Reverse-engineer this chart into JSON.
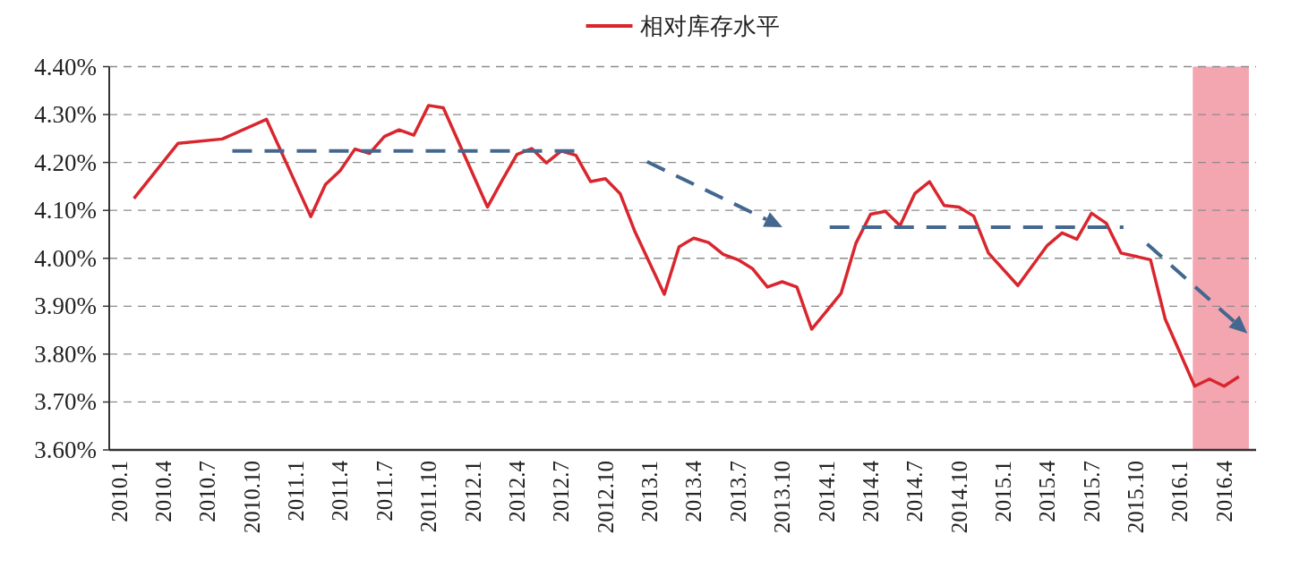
{
  "chart_data": {
    "type": "line",
    "xlim": [
      "2009-12-11",
      "2016-06-06"
    ],
    "xticks": [
      {
        "value": "2010-01",
        "label": "2010.1"
      },
      {
        "value": "2010-04",
        "label": "2010.4"
      },
      {
        "value": "2010-07",
        "label": "2010.7"
      },
      {
        "value": "2010-10",
        "label": "2010.10"
      },
      {
        "value": "2011-01",
        "label": "2011.1"
      },
      {
        "value": "2011-04",
        "label": "2011.4"
      },
      {
        "value": "2011-07",
        "label": "2011.7"
      },
      {
        "value": "2011-10",
        "label": "2011.10"
      },
      {
        "value": "2012-01",
        "label": "2012.1"
      },
      {
        "value": "2012-04",
        "label": "2012.4"
      },
      {
        "value": "2012-07",
        "label": "2012.7"
      },
      {
        "value": "2012-10",
        "label": "2012.10"
      },
      {
        "value": "2013-01",
        "label": "2013.1"
      },
      {
        "value": "2013-04",
        "label": "2013.4"
      },
      {
        "value": "2013-07",
        "label": "2013.7"
      },
      {
        "value": "2013-10",
        "label": "2013.10"
      },
      {
        "value": "2014-01",
        "label": "2014.1"
      },
      {
        "value": "2014-04",
        "label": "2014.4"
      },
      {
        "value": "2014-07",
        "label": "2014.7"
      },
      {
        "value": "2014-10",
        "label": "2014.10"
      },
      {
        "value": "2015-01",
        "label": "2015.1"
      },
      {
        "value": "2015-04",
        "label": "2015.4"
      },
      {
        "value": "2015-07",
        "label": "2015.7"
      },
      {
        "value": "2015-10",
        "label": "2015.10"
      },
      {
        "value": "2016-01",
        "label": "2016.1"
      },
      {
        "value": "2016-04",
        "label": "2016.4"
      }
    ],
    "ylim": [
      3.6,
      4.4
    ],
    "yticks": [
      {
        "value": 3.6,
        "label": "3.60%"
      },
      {
        "value": 3.7,
        "label": "3.70%"
      },
      {
        "value": 3.8,
        "label": "3.80%"
      },
      {
        "value": 3.9,
        "label": "3.90%"
      },
      {
        "value": 4.0,
        "label": "4.00%"
      },
      {
        "value": 4.1,
        "label": "4.10%"
      },
      {
        "value": 4.2,
        "label": "4.20%"
      },
      {
        "value": 4.3,
        "label": "4.30%"
      },
      {
        "value": 4.4,
        "label": "4.40%"
      }
    ],
    "grid": "y",
    "legend": "top",
    "bands": [
      {
        "axis": "x",
        "from": "2016-01-28",
        "to": "2016-05-22",
        "color": "#f4a6b0"
      }
    ],
    "series": [
      {
        "name": "相对库存水平",
        "color": "#d9262e",
        "line_style": "solid",
        "x": [
          "2010-02",
          "2010-05",
          "2010-08",
          "2010-11",
          "2011-02",
          "2011-03",
          "2011-04",
          "2011-05",
          "2011-06",
          "2011-07",
          "2011-08",
          "2011-09",
          "2011-10",
          "2011-11",
          "2012-02",
          "2012-03",
          "2012-04",
          "2012-05",
          "2012-06",
          "2012-07",
          "2012-08",
          "2012-09",
          "2012-10",
          "2012-11",
          "2012-12",
          "2013-02",
          "2013-03",
          "2013-04",
          "2013-05",
          "2013-06",
          "2013-07",
          "2013-08",
          "2013-09",
          "2013-10",
          "2013-11",
          "2013-12",
          "2014-01",
          "2014-02",
          "2014-03",
          "2014-04",
          "2014-05",
          "2014-06",
          "2014-07",
          "2014-08",
          "2014-09",
          "2014-10",
          "2014-11",
          "2014-12",
          "2015-02",
          "2015-04",
          "2015-05",
          "2015-06",
          "2015-07",
          "2015-08",
          "2015-09",
          "2015-11",
          "2015-12",
          "2016-02",
          "2016-03",
          "2016-04",
          "2016-05"
        ],
        "values": [
          4.125,
          4.24,
          4.249,
          4.29,
          4.087,
          4.154,
          4.183,
          4.228,
          4.219,
          4.254,
          4.268,
          4.257,
          4.319,
          4.314,
          4.107,
          4.163,
          4.217,
          4.229,
          4.199,
          4.224,
          4.215,
          4.16,
          4.166,
          4.135,
          4.056,
          3.925,
          4.024,
          4.042,
          4.033,
          4.008,
          3.997,
          3.978,
          3.94,
          3.951,
          3.94,
          3.852,
          3.889,
          3.927,
          4.031,
          4.092,
          4.098,
          4.068,
          4.135,
          4.16,
          4.11,
          4.107,
          4.088,
          4.011,
          3.943,
          4.027,
          4.053,
          4.04,
          4.094,
          4.073,
          4.011,
          3.997,
          3.873,
          3.733,
          3.748,
          3.733,
          3.753
        ]
      },
      {
        "type": "line",
        "color": "#44678f",
        "line_style": "dashed",
        "x": [
          "2010-08-22",
          "2012-08-04"
        ],
        "values": [
          4.224,
          4.224
        ]
      },
      {
        "type": "line",
        "color": "#44678f",
        "line_style": "dashed",
        "x": [
          "2014-01-08",
          "2015-09-06"
        ],
        "values": [
          4.065,
          4.065
        ]
      }
    ]
  }
}
